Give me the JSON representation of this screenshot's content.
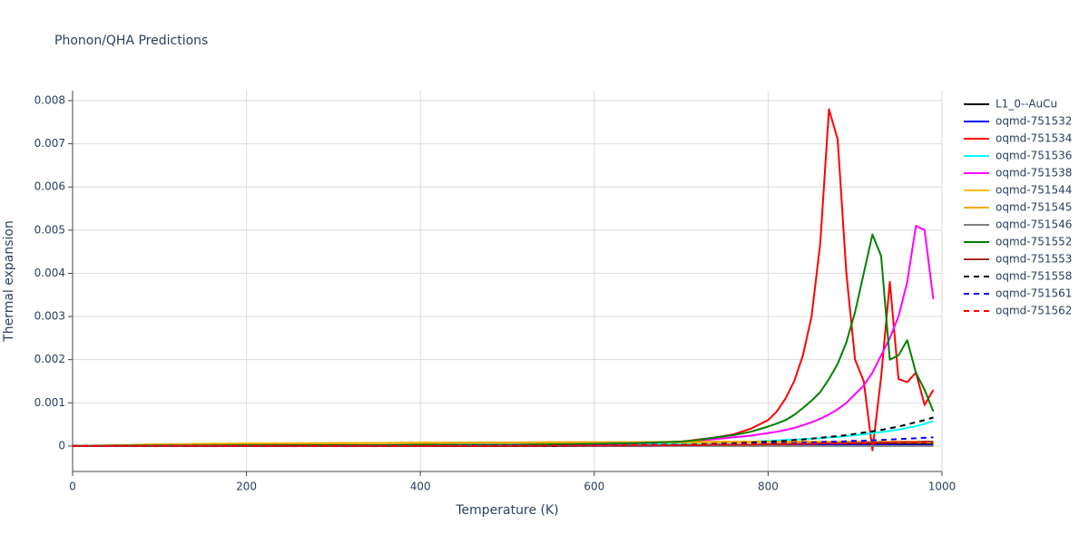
{
  "chart_data": {
    "type": "line",
    "title": "Phonon/QHA Predictions",
    "x_label": "Temperature (K)",
    "y_label": "Thermal expansion",
    "x": [
      0,
      50,
      100,
      150,
      200,
      250,
      300,
      350,
      400,
      450,
      500,
      550,
      600,
      650,
      700,
      720,
      740,
      760,
      780,
      800,
      810,
      820,
      830,
      840,
      850,
      860,
      870,
      880,
      890,
      900,
      910,
      920,
      930,
      940,
      950,
      960,
      970,
      980,
      990
    ],
    "xlim": [
      0,
      1000
    ],
    "xticks": [
      0,
      200,
      400,
      600,
      800,
      1000
    ],
    "ylim": [
      -0.00059,
      0.00823
    ],
    "yticks": [
      0,
      0.001,
      0.002,
      0.003,
      0.004,
      0.005,
      0.006,
      0.007,
      0.008
    ],
    "grid": true,
    "legend": "right",
    "series": [
      {
        "name": "L1_0--AuCu",
        "color": "#000000",
        "dash": false,
        "values": [
          0,
          0,
          0,
          0,
          0,
          0,
          0,
          0,
          0,
          0,
          0,
          1e-05,
          1e-05,
          1e-05,
          1e-05,
          2e-05,
          2e-05,
          2e-05,
          2e-05,
          3e-05,
          3e-05,
          3e-05,
          3e-05,
          3e-05,
          3e-05,
          4e-05,
          4e-05,
          4e-05,
          4e-05,
          4e-05,
          4e-05,
          5e-05,
          5e-05,
          5e-05,
          5e-05,
          5e-05,
          5e-05,
          5e-05,
          5e-05
        ]
      },
      {
        "name": "oqmd-751532",
        "color": "#0000ff",
        "dash": false,
        "values": [
          0,
          0,
          0,
          0,
          0,
          0,
          0,
          0,
          0,
          0,
          0,
          0,
          0,
          0,
          1e-05,
          1e-05,
          1e-05,
          1e-05,
          1e-05,
          1e-05,
          1e-05,
          1e-05,
          1e-05,
          1e-05,
          1e-05,
          2e-05,
          2e-05,
          2e-05,
          2e-05,
          2e-05,
          2e-05,
          2e-05,
          2e-05,
          2e-05,
          2e-05,
          2e-05,
          2e-05,
          2e-05,
          2e-05
        ]
      },
      {
        "name": "oqmd-751534",
        "color": "#ff0000",
        "dash": false,
        "values": [
          0,
          0,
          0,
          0,
          1e-05,
          1e-05,
          1e-05,
          1e-05,
          2e-05,
          2e-05,
          2e-05,
          3e-05,
          4e-05,
          6e-05,
          0.0001,
          0.00015,
          0.0002,
          0.00027,
          0.0004,
          0.0006,
          0.0008,
          0.0011,
          0.0015,
          0.0021,
          0.003,
          0.0047,
          0.0078,
          0.0071,
          0.004,
          0.002,
          0.0015,
          -0.0001,
          0.0016,
          0.0038,
          0.00155,
          0.00148,
          0.0017,
          0.00095,
          0.0013
        ]
      },
      {
        "name": "oqmd-751536",
        "color": "#00ffff",
        "dash": false,
        "values": [
          0,
          0,
          0,
          0,
          1e-05,
          1e-05,
          1e-05,
          1e-05,
          1e-05,
          2e-05,
          2e-05,
          2e-05,
          3e-05,
          4e-05,
          5e-05,
          6e-05,
          7e-05,
          8e-05,
          0.0001,
          0.00012,
          0.00013,
          0.00014,
          0.00015,
          0.00016,
          0.00017,
          0.00018,
          0.0002,
          0.00021,
          0.00023,
          0.00025,
          0.00027,
          0.0003,
          0.00032,
          0.00035,
          0.00038,
          0.00042,
          0.00046,
          0.00051,
          0.00058
        ]
      },
      {
        "name": "oqmd-751538",
        "color": "#ff00ff",
        "dash": false,
        "values": [
          0,
          0,
          1e-05,
          1e-05,
          1e-05,
          1e-05,
          2e-05,
          2e-05,
          2e-05,
          2e-05,
          3e-05,
          3e-05,
          4e-05,
          6e-05,
          0.0001,
          0.00013,
          0.00016,
          0.0002,
          0.00024,
          0.0003,
          0.00033,
          0.00037,
          0.00042,
          0.00048,
          0.00055,
          0.00063,
          0.00073,
          0.00085,
          0.001,
          0.0012,
          0.0014,
          0.0017,
          0.0021,
          0.0025,
          0.003,
          0.0038,
          0.0051,
          0.005,
          0.0034
        ]
      },
      {
        "name": "oqmd-751544",
        "color": "#ffbf00",
        "dash": false,
        "values": [
          0,
          2e-05,
          4e-05,
          5e-05,
          6e-05,
          6e-05,
          7e-05,
          7e-05,
          8e-05,
          8e-05,
          8e-05,
          8e-05,
          8e-05,
          8e-05,
          8e-05,
          8e-05,
          8e-05,
          8e-05,
          8e-05,
          8e-05,
          8e-05,
          8e-05,
          8e-05,
          8e-05,
          8e-05,
          8e-05,
          8e-05,
          8e-05,
          8e-05,
          8e-05,
          8e-05,
          8e-05,
          8e-05,
          8e-05,
          8e-05,
          8e-05,
          8e-05,
          8e-05,
          8e-05
        ]
      },
      {
        "name": "oqmd-751545",
        "color": "#ffa500",
        "dash": false,
        "values": [
          0,
          1e-05,
          3e-05,
          4e-05,
          5e-05,
          6e-05,
          6e-05,
          7e-05,
          7e-05,
          8e-05,
          8e-05,
          9e-05,
          9e-05,
          9e-05,
          0.0001,
          0.0001,
          0.0001,
          0.0001,
          0.0001,
          0.0001,
          0.0001,
          0.0001,
          0.0001,
          0.0001,
          0.0001,
          0.0001,
          0.0001,
          0.0001,
          0.0001,
          0.0001,
          0.0001,
          0.0001,
          0.0001,
          0.0001,
          0.0001,
          0.0001,
          0.0001,
          0.0001,
          0.0001
        ]
      },
      {
        "name": "oqmd-751546",
        "color": "#808080",
        "dash": false,
        "values": [
          0,
          0,
          0,
          0,
          0,
          0,
          0,
          0,
          0,
          0,
          0,
          0,
          0,
          0,
          0,
          0,
          0,
          0,
          0,
          0,
          0,
          0,
          0,
          0,
          0,
          0,
          0,
          0,
          0,
          0,
          0,
          0,
          0,
          0,
          0,
          0,
          0,
          0,
          0
        ]
      },
      {
        "name": "oqmd-751552",
        "color": "#008000",
        "dash": false,
        "values": [
          0,
          1e-05,
          1e-05,
          1e-05,
          2e-05,
          2e-05,
          2e-05,
          2e-05,
          3e-05,
          3e-05,
          3e-05,
          4e-05,
          5e-05,
          7e-05,
          0.0001,
          0.00014,
          0.0002,
          0.00025,
          0.00033,
          0.00045,
          0.00052,
          0.0006,
          0.00072,
          0.00088,
          0.00105,
          0.00125,
          0.00155,
          0.0019,
          0.0024,
          0.0031,
          0.004,
          0.0049,
          0.0044,
          0.002,
          0.0021,
          0.00245,
          0.0017,
          0.0013,
          0.0008
        ]
      },
      {
        "name": "oqmd-751553",
        "color": "#a52a2a",
        "dash": false,
        "values": [
          0,
          0,
          0,
          0,
          0,
          0,
          0,
          0,
          0,
          0,
          0,
          0,
          1e-05,
          1e-05,
          2e-05,
          2e-05,
          3e-05,
          3e-05,
          3e-05,
          4e-05,
          4e-05,
          4e-05,
          5e-05,
          5e-05,
          5e-05,
          6e-05,
          6e-05,
          6e-05,
          7e-05,
          7e-05,
          7e-05,
          8e-05,
          8e-05,
          8e-05,
          9e-05,
          9e-05,
          9e-05,
          0.0001,
          0.0001
        ]
      },
      {
        "name": "oqmd-751558",
        "color": "#000000",
        "dash": true,
        "values": [
          0,
          0,
          0,
          0,
          0,
          0,
          0,
          0,
          0,
          0,
          0,
          0,
          1e-05,
          2e-05,
          3e-05,
          4e-05,
          5e-05,
          6e-05,
          8e-05,
          0.0001,
          0.00011,
          0.00012,
          0.00014,
          0.00015,
          0.00017,
          0.00019,
          0.00021,
          0.00023,
          0.00025,
          0.00028,
          0.00031,
          0.00034,
          0.00037,
          0.00041,
          0.00045,
          0.0005,
          0.00055,
          0.0006,
          0.00066
        ]
      },
      {
        "name": "oqmd-751561",
        "color": "#0000ff",
        "dash": true,
        "values": [
          0,
          0,
          0,
          0,
          0,
          0,
          0,
          0,
          0,
          1e-05,
          1e-05,
          1e-05,
          2e-05,
          2e-05,
          3e-05,
          3e-05,
          4e-05,
          4e-05,
          5e-05,
          6e-05,
          6e-05,
          7e-05,
          7e-05,
          8e-05,
          8e-05,
          9e-05,
          0.0001,
          0.0001,
          0.00011,
          0.00012,
          0.00012,
          0.00013,
          0.00014,
          0.00015,
          0.00016,
          0.00017,
          0.00018,
          0.00019,
          0.0002
        ]
      },
      {
        "name": "oqmd-751562",
        "color": "#ff0000",
        "dash": true,
        "values": [
          0,
          0,
          0,
          0,
          0,
          0,
          0,
          0,
          0,
          0,
          0,
          1e-05,
          1e-05,
          2e-05,
          2e-05,
          3e-05,
          3e-05,
          3e-05,
          4e-05,
          4e-05,
          4e-05,
          5e-05,
          5e-05,
          5e-05,
          5e-05,
          6e-05,
          6e-05,
          6e-05,
          6e-05,
          7e-05,
          7e-05,
          7e-05,
          7e-05,
          7e-05,
          8e-05,
          8e-05,
          8e-05,
          8e-05,
          8e-05
        ]
      }
    ]
  }
}
